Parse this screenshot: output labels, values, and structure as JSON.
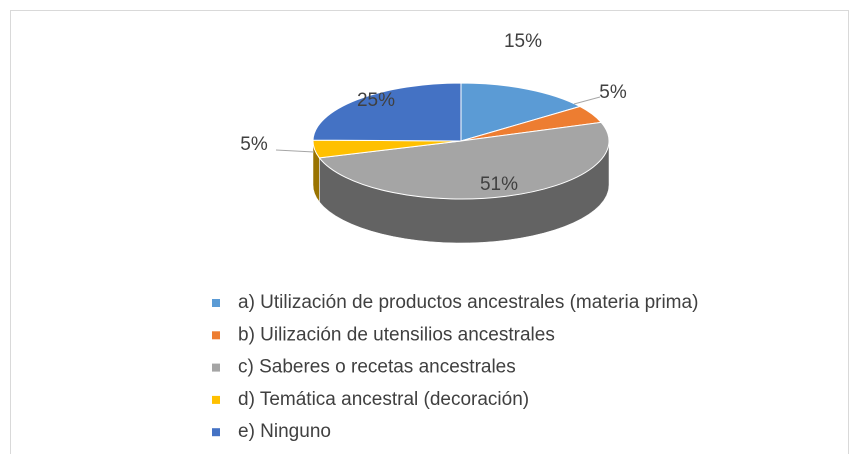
{
  "chart_data": {
    "type": "pie",
    "categories": [
      "a) Utilización de productos ancestrales (materia prima)",
      "b) Uilización de utensilios ancestrales",
      "c) Saberes o recetas ancestrales",
      "d) Temática ancestral (decoración)",
      "e) Ninguno"
    ],
    "values": [
      15,
      5,
      51,
      5,
      25
    ],
    "value_labels": [
      "15%",
      "5%",
      "51%",
      "5%",
      "25%"
    ],
    "colors": [
      "#5b9bd5",
      "#ed7d31",
      "#a5a5a5",
      "#ffc000",
      "#4472c4"
    ],
    "legend": "bottom"
  }
}
